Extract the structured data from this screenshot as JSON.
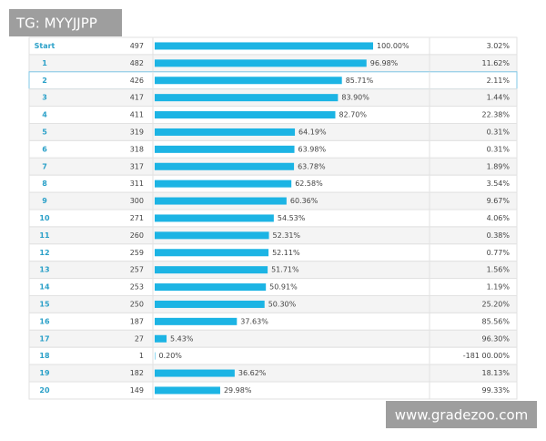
{
  "watermark_top": "TG: MYYJJPP",
  "watermark_bottom": "www.gradezoo.com",
  "rows": [
    {
      "label": "Start",
      "count": 497,
      "pct": 100.0,
      "pct_label": "100.00%",
      "drop_label": "3.02%"
    },
    {
      "label": "1",
      "count": 482,
      "pct": 96.98,
      "pct_label": "96.98%",
      "drop_label": "11.62%"
    },
    {
      "label": "2",
      "count": 426,
      "pct": 85.71,
      "pct_label": "85.71%",
      "drop_label": "2.11%"
    },
    {
      "label": "3",
      "count": 417,
      "pct": 83.9,
      "pct_label": "83.90%",
      "drop_label": "1.44%"
    },
    {
      "label": "4",
      "count": 411,
      "pct": 82.7,
      "pct_label": "82.70%",
      "drop_label": "22.38%"
    },
    {
      "label": "5",
      "count": 319,
      "pct": 64.19,
      "pct_label": "64.19%",
      "drop_label": "0.31%"
    },
    {
      "label": "6",
      "count": 318,
      "pct": 63.98,
      "pct_label": "63.98%",
      "drop_label": "0.31%"
    },
    {
      "label": "7",
      "count": 317,
      "pct": 63.78,
      "pct_label": "63.78%",
      "drop_label": "1.89%"
    },
    {
      "label": "8",
      "count": 311,
      "pct": 62.58,
      "pct_label": "62.58%",
      "drop_label": "3.54%"
    },
    {
      "label": "9",
      "count": 300,
      "pct": 60.36,
      "pct_label": "60.36%",
      "drop_label": "9.67%"
    },
    {
      "label": "10",
      "count": 271,
      "pct": 54.53,
      "pct_label": "54.53%",
      "drop_label": "4.06%"
    },
    {
      "label": "11",
      "count": 260,
      "pct": 52.31,
      "pct_label": "52.31%",
      "drop_label": "0.38%"
    },
    {
      "label": "12",
      "count": 259,
      "pct": 52.11,
      "pct_label": "52.11%",
      "drop_label": "0.77%"
    },
    {
      "label": "13",
      "count": 257,
      "pct": 51.71,
      "pct_label": "51.71%",
      "drop_label": "1.56%"
    },
    {
      "label": "14",
      "count": 253,
      "pct": 50.91,
      "pct_label": "50.91%",
      "drop_label": "1.19%"
    },
    {
      "label": "15",
      "count": 250,
      "pct": 50.3,
      "pct_label": "50.30%",
      "drop_label": "25.20%"
    },
    {
      "label": "16",
      "count": 187,
      "pct": 37.63,
      "pct_label": "37.63%",
      "drop_label": "85.56%"
    },
    {
      "label": "17",
      "count": 27,
      "pct": 5.43,
      "pct_label": "5.43%",
      "drop_label": "96.30%"
    },
    {
      "label": "18",
      "count": 1,
      "pct": 0.2,
      "pct_label": "0.20%",
      "drop_label": "-181 00.00%"
    },
    {
      "label": "19",
      "count": 182,
      "pct": 36.62,
      "pct_label": "36.62%",
      "drop_label": "18.13%"
    },
    {
      "label": "20",
      "count": 149,
      "pct": 29.98,
      "pct_label": "29.98%",
      "drop_label": "99.33%"
    }
  ]
}
